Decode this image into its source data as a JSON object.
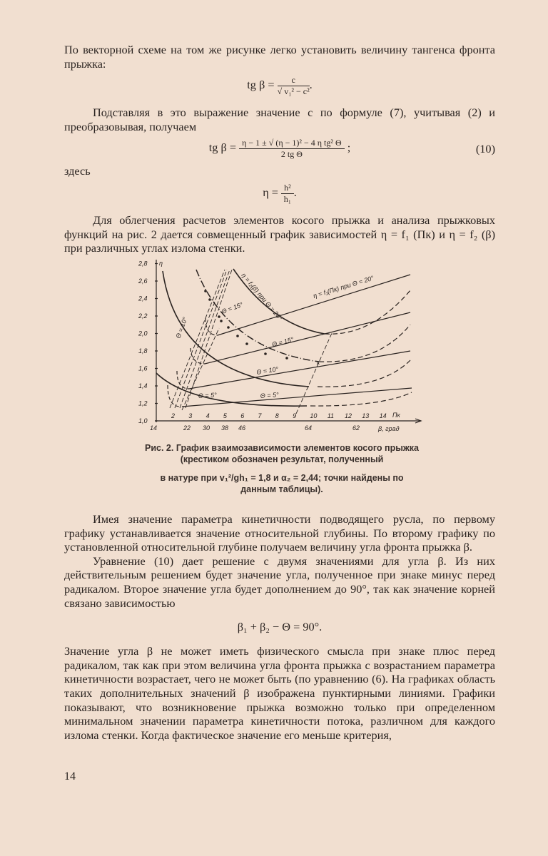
{
  "text": {
    "p1": "По векторной схеме на том же рисунке легко установить величину тангенса фронта прыжка:",
    "f1": "tg β = c / √(v₁² − c²).",
    "f1_lhs": "tg β =",
    "f1_num": "c",
    "f1_den": "√ v₁² − c²",
    "p2": "Подставляя в это выражение значение c по формуле (7), учитывая (2) и преобразовывая, получаем",
    "f2_lhs": "tg β =",
    "f2_num": "η − 1 ± √ (η − 1)² − 4 η tg² Θ",
    "f2_den": "2 tg Θ",
    "f2_tail": ";",
    "f2_no": "(10)",
    "here": "здесь",
    "f3_lhs": "η =",
    "f3_num": "h²",
    "f3_den": "h₁",
    "p3": "Для облегчения расчетов элементов косого прыжка и анализа прыжковых функций на рис. 2 дается совмещенный график зависимостей η = f₁ (Пк) и η = f₂ (β) при различных углах излома стенки.",
    "caption1": "Рис. 2. График взаимозависимости элементов косого прыжка (крестиком обозначен результат, полученный",
    "caption2": "в натуре при v₁²/gh₁ = 1,8 и α₂ = 2,44; точки найдены по данным таблицы).",
    "p4": "Имея значение параметра кинетичности подводящего русла, по первому графику устанавливается значение относительной глубины. По второму графику по установленной относительной глубине получаем величину угла фронта прыжка β.",
    "p5": "Уравнение (10) дает решение с двумя значениями для угла β. Из них действительным решением будет значение угла, полученное при знаке минус перед радикалом. Второе значение угла будет дополнением до 90°, так как значение корней связано зависимостью",
    "f4": "β₁ + β₂ − Θ = 90°.",
    "p6": "Значение угла β не может иметь физического смысла при знаке плюс перед радикалом, так как при этом величина угла фронта прыжка с возрастанием параметра кинетичности возрастает, чего не может быть (по уравнению (6). На графиках область таких дополнительных значений β изображена пунктирными линиями. Графики показывают, что возникновение прыжка возможно только при определенном минимальном значении параметра кинетичности потока, различном для каждого излома стенки. Когда фактическое значение его меньше критерия,",
    "page_number": "14"
  },
  "chart_data": {
    "type": "line",
    "ylabel": "η",
    "xlabel_top": "Пк",
    "xlabel_bottom": "β, град",
    "yticks": [
      "1,0",
      "1,2",
      "1,4",
      "1,6",
      "1,8",
      "2,0",
      "2,2",
      "2,4",
      "2,6",
      "2,8"
    ],
    "xticks_pk": [
      "2",
      "3",
      "4",
      "5",
      "6",
      "7",
      "8",
      "9",
      "10",
      "11",
      "12",
      "13",
      "14"
    ],
    "xticks_beta": [
      "14",
      "22",
      "30",
      "38",
      "46",
      "64",
      "62"
    ],
    "labels": {
      "f1_20": "η = f₁(Пк) при Θ = 20°",
      "f2_20": "η = f₂(β) при Θ = 20°",
      "f1_15": "Θ = 15°",
      "f2_15": "Θ = 15°",
      "f1_10": "Θ = 10°",
      "f2_10": "Θ = 10°",
      "f1_5": "Θ = 5°",
      "f2_5": "Θ = 5°"
    }
  }
}
